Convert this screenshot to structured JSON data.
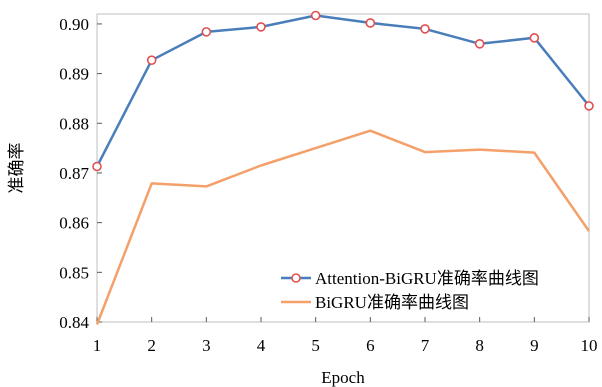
{
  "chart_data": {
    "type": "line",
    "title": "",
    "xlabel": "Epoch",
    "ylabel": "准确率",
    "x": [
      1,
      2,
      3,
      4,
      5,
      6,
      7,
      8,
      9,
      10
    ],
    "xlim": [
      1,
      10
    ],
    "ylim": [
      0.84,
      0.902
    ],
    "yticks": [
      0.84,
      0.85,
      0.86,
      0.87,
      0.88,
      0.89,
      0.9
    ],
    "ytick_labels": [
      "0.84",
      "0.85",
      "0.86",
      "0.87",
      "0.88",
      "0.89",
      "0.90"
    ],
    "xtick_labels": [
      "1",
      "2",
      "3",
      "4",
      "5",
      "6",
      "7",
      "8",
      "9",
      "10"
    ],
    "grid": false,
    "legend_position": "bottom-right",
    "series": [
      {
        "name": "Attention-BiGRU准确率曲线图",
        "values": [
          0.8713,
          0.8927,
          0.8984,
          0.8994,
          0.9017,
          0.9002,
          0.899,
          0.896,
          0.8972,
          0.8835
        ],
        "line_color": "#4a7ebb",
        "marker": "circle",
        "marker_edge_color": "#e05050",
        "marker_face_color": "#ffffff"
      },
      {
        "name": "BiGRU准确率曲线图",
        "values": [
          0.8395,
          0.8679,
          0.8673,
          0.8715,
          0.875,
          0.8785,
          0.8742,
          0.8747,
          0.8741,
          0.8583
        ],
        "line_color": "#f4a06a",
        "marker": "none"
      }
    ]
  }
}
